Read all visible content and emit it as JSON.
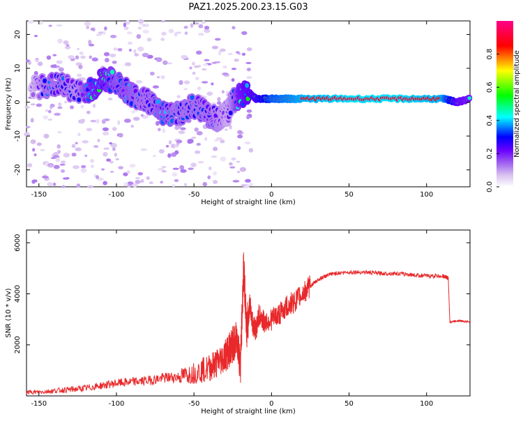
{
  "title": "PAZ1.2025.200.23.15.G03",
  "chart_data": [
    {
      "type": "heatmap",
      "xlabel": "Height of straight line (km)",
      "ylabel": "Frequency (Hz)",
      "xlim": [
        -158,
        128
      ],
      "ylim": [
        -25,
        24
      ],
      "xticks": [
        -150,
        -100,
        -50,
        0,
        50,
        100
      ],
      "yticks": [
        -20,
        -10,
        0,
        10,
        20
      ],
      "colorbar": {
        "label": "Normalized spectral amplitude",
        "range": [
          0,
          1
        ],
        "ticks": [
          0.0,
          0.2,
          0.4,
          0.6,
          0.8
        ],
        "colormap": [
          "#ffffff",
          "#d9c2f0",
          "#9b59f0",
          "#6a00ff",
          "#0000ff",
          "#00ffff",
          "#00ff00",
          "#ffff00",
          "#ff0000",
          "#ff0088"
        ]
      },
      "ridge": {
        "x": [
          -155,
          -145,
          -135,
          -125,
          -115,
          -108,
          -100,
          -92,
          -85,
          -78,
          -70,
          -62,
          -55,
          -48,
          -40,
          -33,
          -28,
          -24,
          -20,
          -15,
          -10,
          0,
          10,
          20,
          50,
          80,
          110,
          120,
          128
        ],
        "y": [
          4,
          5,
          5,
          3,
          4,
          7,
          6,
          3,
          1,
          0,
          -3,
          -4,
          -2,
          -1,
          -4,
          -5,
          -3,
          1,
          2,
          3,
          1,
          1,
          1,
          1,
          1,
          1,
          1,
          0,
          1
        ],
        "amplitude": [
          0.15,
          0.3,
          0.3,
          0.25,
          0.45,
          0.45,
          0.35,
          0.35,
          0.3,
          0.3,
          0.35,
          0.3,
          0.3,
          0.3,
          0.3,
          0.25,
          0.2,
          0.3,
          0.45,
          0.5,
          0.55,
          0.75,
          0.8,
          0.85,
          0.9,
          0.9,
          0.85,
          0.5,
          0.45
        ]
      }
    },
    {
      "type": "line",
      "xlabel": "Height of straight line (km)",
      "ylabel": "SNR (10 * v/v)",
      "xlim": [
        -158,
        128
      ],
      "ylim": [
        0,
        6500
      ],
      "xticks": [
        -150,
        -100,
        -50,
        0,
        50,
        100
      ],
      "yticks": [
        2000,
        4000,
        6000
      ],
      "series": [
        {
          "color": "#e8282a",
          "x": [
            -158,
            -150,
            -140,
            -130,
            -120,
            -110,
            -100,
            -90,
            -80,
            -70,
            -60,
            -50,
            -40,
            -35,
            -30,
            -27,
            -25,
            -22,
            -20,
            -18,
            -16,
            -14,
            -12,
            -10,
            -8,
            -5,
            0,
            5,
            10,
            15,
            20,
            25,
            30,
            35,
            40,
            50,
            60,
            70,
            80,
            90,
            100,
            110,
            113,
            114,
            115,
            120,
            128
          ],
          "y": [
            150,
            150,
            200,
            250,
            300,
            400,
            500,
            550,
            600,
            700,
            750,
            900,
            1100,
            1300,
            1600,
            1800,
            2000,
            2200,
            1200,
            5000,
            2600,
            3600,
            2800,
            2600,
            3200,
            2900,
            3000,
            3200,
            3500,
            3700,
            4000,
            4300,
            4550,
            4700,
            4800,
            4850,
            4850,
            4800,
            4800,
            4750,
            4700,
            4700,
            4650,
            4600,
            2900,
            2950,
            2900
          ]
        }
      ]
    }
  ]
}
